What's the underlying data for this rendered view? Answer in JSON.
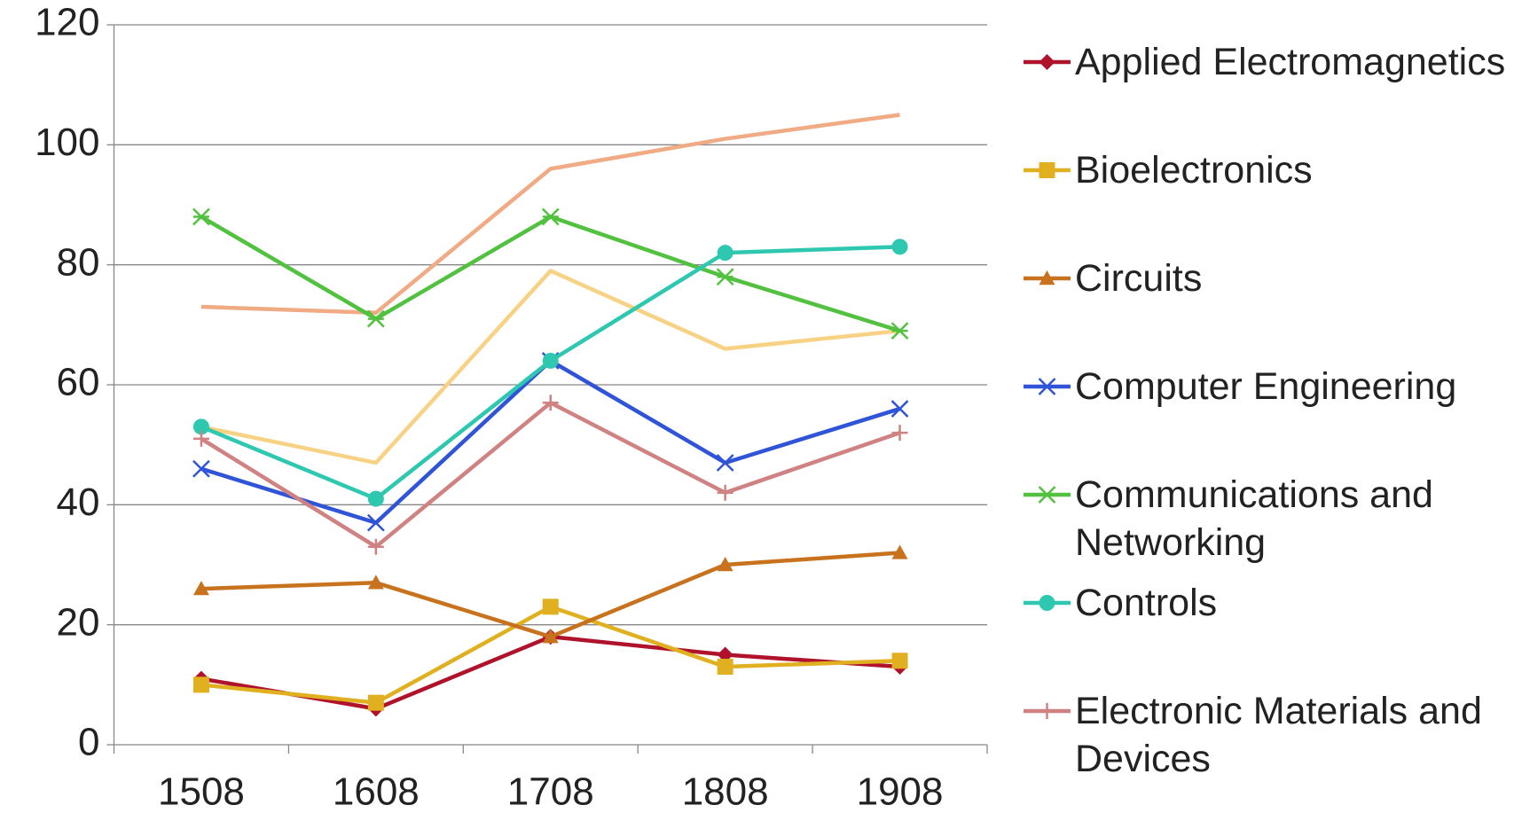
{
  "chart_data": {
    "type": "line",
    "categories": [
      "1508",
      "1608",
      "1708",
      "1808",
      "1908"
    ],
    "ylim": [
      0,
      120
    ],
    "yticks": [
      0,
      20,
      40,
      60,
      80,
      100,
      120
    ],
    "grid": true,
    "series": [
      {
        "name": "Applied Electromagnetics",
        "color": "#b0122c",
        "marker": "diamond",
        "values": [
          11,
          6,
          18,
          15,
          13
        ]
      },
      {
        "name": "Bioelectronics",
        "color": "#e0b020",
        "marker": "square",
        "values": [
          10,
          7,
          23,
          13,
          14
        ]
      },
      {
        "name": "Circuits",
        "color": "#c8721e",
        "marker": "triangle",
        "values": [
          26,
          27,
          18,
          30,
          32
        ]
      },
      {
        "name": "Computer Engineering",
        "color": "#3054d8",
        "marker": "x",
        "values": [
          46,
          37,
          64,
          47,
          56
        ]
      },
      {
        "name": "Communications and Networking",
        "color": "#52c140",
        "marker": "star",
        "values": [
          88,
          71,
          88,
          78,
          69
        ]
      },
      {
        "name": "Controls",
        "color": "#2ec8b0",
        "marker": "circle",
        "values": [
          53,
          41,
          64,
          82,
          83
        ]
      },
      {
        "name": "Electronic Materials and Devices",
        "color": "#d08282",
        "marker": "plus",
        "values": [
          51,
          33,
          57,
          42,
          52
        ]
      },
      {
        "color": "#f0aa84",
        "values": [
          73,
          72,
          96,
          101,
          105
        ]
      },
      {
        "color": "#f8d284",
        "values": [
          53,
          47,
          79,
          66,
          69
        ]
      }
    ]
  }
}
